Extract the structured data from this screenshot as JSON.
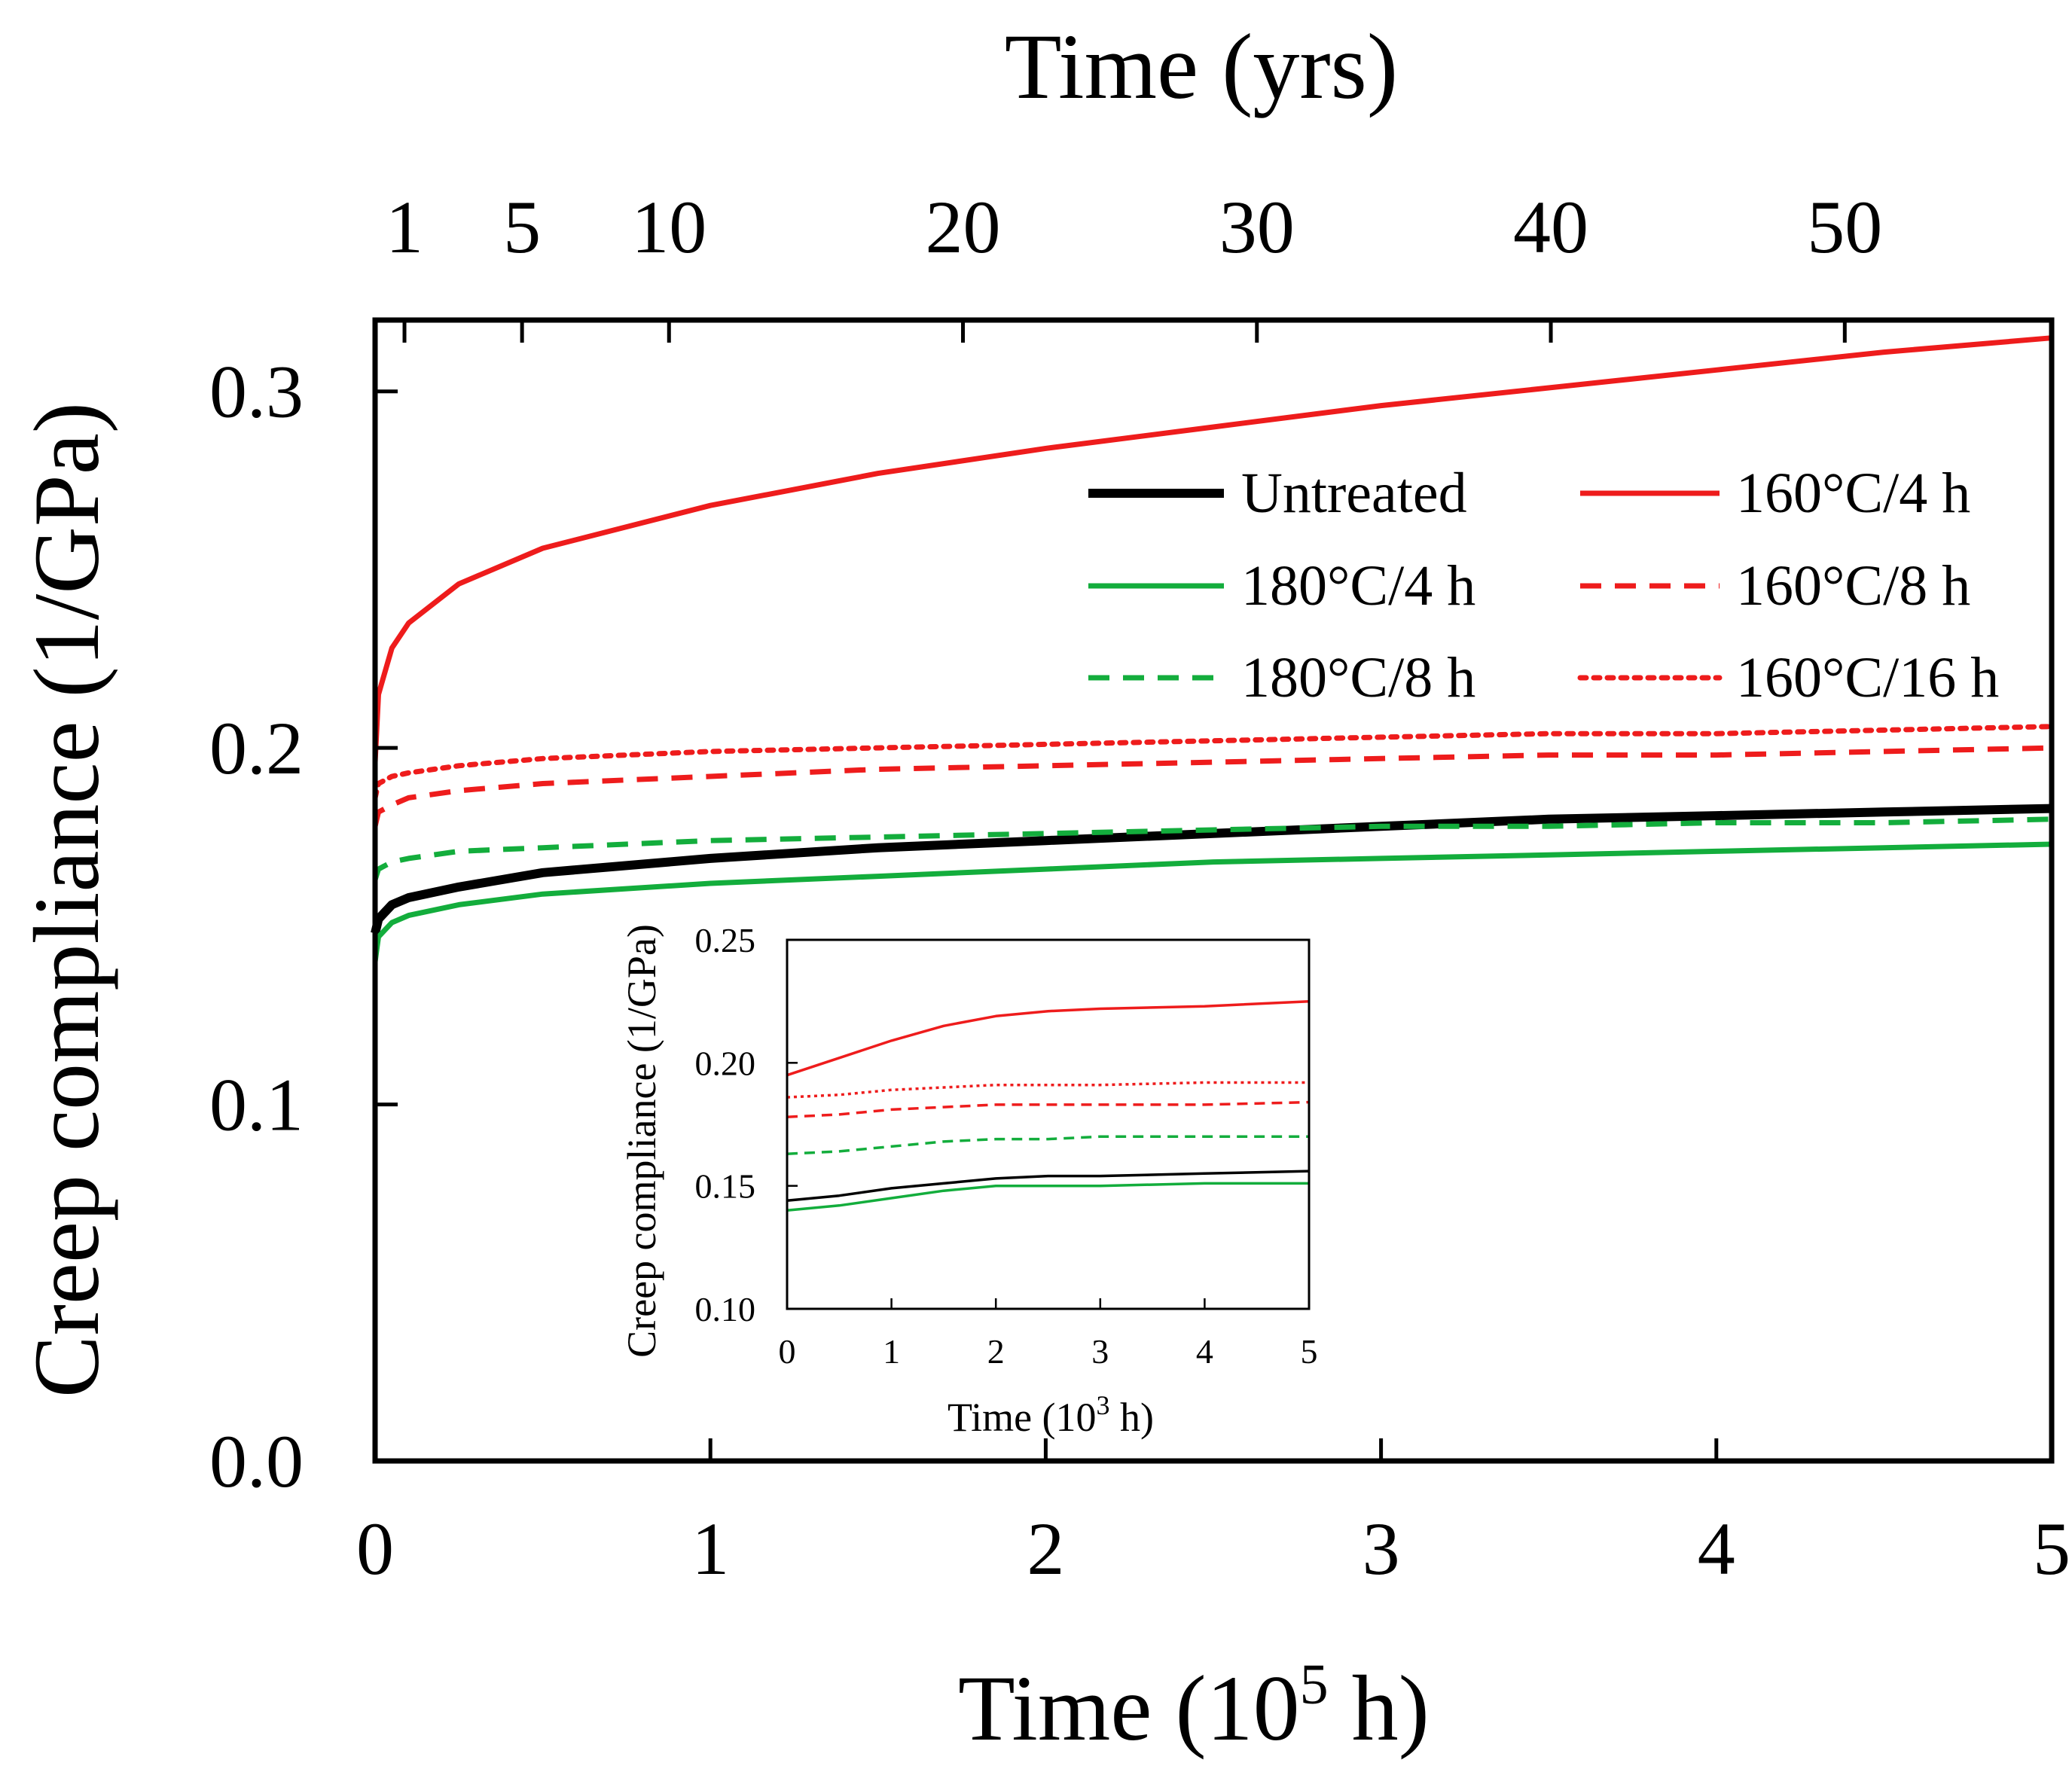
{
  "chart_data": [
    {
      "type": "line",
      "title": "",
      "xlabel_bottom_main": "Time (10",
      "xlabel_bottom_sup": "5",
      "xlabel_bottom_tail": " h)",
      "xlabel_top": "Time (yrs)",
      "ylabel": "Creep compliance (1/GPa)",
      "xlim": [
        0,
        5
      ],
      "ylim": [
        0,
        0.32
      ],
      "x_ticks": [
        "0",
        "1",
        "2",
        "3",
        "4",
        "5"
      ],
      "y_ticks": [
        "0.0",
        "0.1",
        "0.2",
        "0.3"
      ],
      "top_ticks": [
        {
          "label": "1",
          "years": 1
        },
        {
          "label": "5",
          "years": 5
        },
        {
          "label": "10",
          "years": 10
        },
        {
          "label": "20",
          "years": 20
        },
        {
          "label": "30",
          "years": 30
        },
        {
          "label": "40",
          "years": 40
        },
        {
          "label": "50",
          "years": 50
        }
      ],
      "grid": false,
      "legend_position": "upper-right",
      "series": [
        {
          "name": "Untreated",
          "color": "#000000",
          "style": "solid",
          "x": [
            0,
            0.01,
            0.05,
            0.1,
            0.25,
            0.5,
            1,
            1.5,
            2,
            2.5,
            3,
            3.5,
            4,
            4.5,
            5
          ],
          "y": [
            0.148,
            0.152,
            0.156,
            0.158,
            0.161,
            0.165,
            0.169,
            0.172,
            0.174,
            0.176,
            0.178,
            0.18,
            0.181,
            0.182,
            0.183
          ]
        },
        {
          "name": "160°C/4 h",
          "color": "#ee1c1c",
          "style": "solid",
          "x": [
            0,
            0.01,
            0.05,
            0.1,
            0.25,
            0.5,
            1,
            1.5,
            2,
            2.5,
            3,
            3.5,
            4,
            4.5,
            5
          ],
          "y": [
            0.196,
            0.215,
            0.228,
            0.235,
            0.246,
            0.256,
            0.268,
            0.277,
            0.284,
            0.29,
            0.296,
            0.301,
            0.306,
            0.311,
            0.315
          ]
        },
        {
          "name": "180°C/4 h",
          "color": "#13ad3c",
          "style": "solid",
          "x": [
            0,
            0.01,
            0.05,
            0.1,
            0.25,
            0.5,
            1,
            1.5,
            2,
            2.5,
            3,
            3.5,
            4,
            4.5,
            5
          ],
          "y": [
            0.14,
            0.147,
            0.151,
            0.153,
            0.156,
            0.159,
            0.162,
            0.164,
            0.166,
            0.168,
            0.169,
            0.17,
            0.171,
            0.172,
            0.173
          ]
        },
        {
          "name": "160°C/8 h",
          "color": "#ee1c1c",
          "style": "dashed",
          "x": [
            0,
            0.01,
            0.05,
            0.1,
            0.25,
            0.5,
            1,
            1.5,
            2,
            2.5,
            3,
            3.5,
            4,
            4.5,
            5
          ],
          "y": [
            0.178,
            0.182,
            0.184,
            0.186,
            0.188,
            0.19,
            0.192,
            0.194,
            0.195,
            0.196,
            0.197,
            0.198,
            0.198,
            0.199,
            0.2
          ]
        },
        {
          "name": "180°C/8 h",
          "color": "#13ad3c",
          "style": "dashed",
          "x": [
            0,
            0.01,
            0.05,
            0.1,
            0.25,
            0.5,
            1,
            1.5,
            2,
            2.5,
            3,
            3.5,
            4,
            4.5,
            5
          ],
          "y": [
            0.163,
            0.166,
            0.168,
            0.169,
            0.171,
            0.172,
            0.174,
            0.175,
            0.176,
            0.177,
            0.178,
            0.178,
            0.179,
            0.179,
            0.18
          ]
        },
        {
          "name": "160°C/16 h",
          "color": "#ee1c1c",
          "style": "dotted",
          "x": [
            0,
            0.01,
            0.05,
            0.1,
            0.25,
            0.5,
            1,
            1.5,
            2,
            2.5,
            3,
            3.5,
            4,
            4.5,
            5
          ],
          "y": [
            0.186,
            0.19,
            0.192,
            0.193,
            0.195,
            0.197,
            0.199,
            0.2,
            0.201,
            0.202,
            0.203,
            0.204,
            0.204,
            0.205,
            0.206
          ]
        }
      ]
    },
    {
      "type": "line",
      "title": "",
      "xlabel_main": "Time (10",
      "xlabel_sup": "3",
      "xlabel_tail": " h)",
      "ylabel": "Creep compliance (1/GPa)",
      "xlim": [
        0,
        5
      ],
      "ylim": [
        0.1,
        0.25
      ],
      "x_ticks": [
        "0",
        "1",
        "2",
        "3",
        "4",
        "5"
      ],
      "y_ticks": [
        "0.10",
        "0.15",
        "0.20",
        "0.25"
      ],
      "grid": false,
      "series": [
        {
          "name": "160°C/4 h",
          "color": "#ee1c1c",
          "style": "solid",
          "x": [
            0,
            0.5,
            1,
            1.5,
            2,
            2.5,
            3,
            4,
            5
          ],
          "y": [
            0.195,
            0.202,
            0.209,
            0.215,
            0.219,
            0.221,
            0.222,
            0.223,
            0.225
          ]
        },
        {
          "name": "160°C/16 h",
          "color": "#ee1c1c",
          "style": "dotted",
          "x": [
            0,
            0.5,
            1,
            1.5,
            2,
            2.5,
            3,
            4,
            5
          ],
          "y": [
            0.186,
            0.187,
            0.189,
            0.19,
            0.191,
            0.191,
            0.191,
            0.192,
            0.192
          ]
        },
        {
          "name": "160°C/8 h",
          "color": "#ee1c1c",
          "style": "dashed",
          "x": [
            0,
            0.5,
            1,
            1.5,
            2,
            2.5,
            3,
            4,
            5
          ],
          "y": [
            0.178,
            0.179,
            0.181,
            0.182,
            0.183,
            0.183,
            0.183,
            0.183,
            0.184
          ]
        },
        {
          "name": "180°C/8 h",
          "color": "#13ad3c",
          "style": "dashed",
          "x": [
            0,
            0.5,
            1,
            1.5,
            2,
            2.5,
            3,
            4,
            5
          ],
          "y": [
            0.163,
            0.164,
            0.166,
            0.168,
            0.169,
            0.169,
            0.17,
            0.17,
            0.17
          ]
        },
        {
          "name": "Untreated",
          "color": "#000000",
          "style": "solid",
          "x": [
            0,
            0.5,
            1,
            1.5,
            2,
            2.5,
            3,
            4,
            5
          ],
          "y": [
            0.144,
            0.146,
            0.149,
            0.151,
            0.153,
            0.154,
            0.154,
            0.155,
            0.156
          ]
        },
        {
          "name": "180°C/4 h",
          "color": "#13ad3c",
          "style": "solid",
          "x": [
            0,
            0.5,
            1,
            1.5,
            2,
            2.5,
            3,
            4,
            5
          ],
          "y": [
            0.14,
            0.142,
            0.145,
            0.148,
            0.15,
            0.15,
            0.15,
            0.151,
            0.151
          ]
        }
      ]
    }
  ]
}
